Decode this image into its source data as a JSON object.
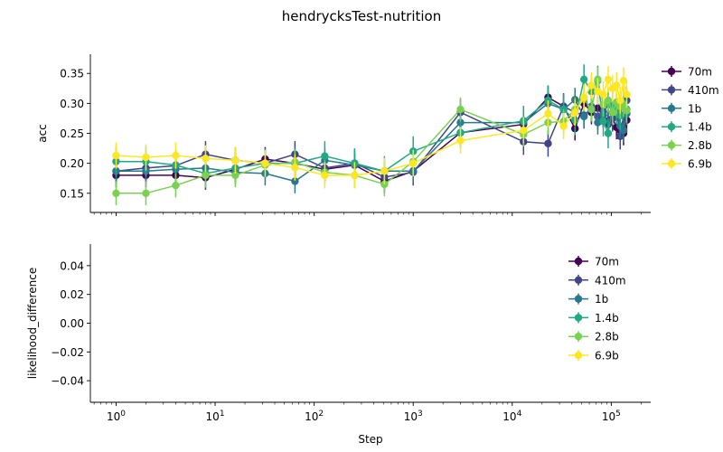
{
  "figure": {
    "title": "hendrycksTest-nutrition"
  },
  "chart_data": [
    {
      "type": "line",
      "title": "",
      "xlabel": "",
      "ylabel": "acc",
      "xscale": "log",
      "xlim": [
        0.55,
        250000
      ],
      "ylim": [
        0.118,
        0.382
      ],
      "x_tick_labels": [
        "10^0",
        "10^1",
        "10^2",
        "10^3",
        "10^4",
        "10^5"
      ],
      "y_ticks": [
        "0.15",
        "0.20",
        "0.25",
        "0.30",
        "0.35"
      ],
      "grid": false,
      "legend": "outside-right",
      "x": [
        1,
        2,
        4,
        8,
        16,
        32,
        64,
        128,
        256,
        512,
        1000,
        3000,
        13000,
        23000,
        33000,
        43000,
        53000,
        63000,
        73000,
        83000,
        93000,
        103000,
        113000,
        123000,
        133000,
        143000
      ],
      "series": [
        {
          "name": "70m",
          "color": "#440154",
          "err": 0.02,
          "values": [
            0.18,
            0.18,
            0.18,
            0.176,
            0.19,
            0.207,
            0.2,
            0.19,
            0.197,
            0.17,
            0.187,
            0.251,
            0.265,
            0.31,
            0.295,
            0.258,
            0.3,
            0.285,
            0.292,
            0.28,
            0.27,
            0.275,
            0.26,
            0.255,
            0.25,
            0.272
          ]
        },
        {
          "name": "410m",
          "color": "#414487",
          "err": 0.022,
          "values": [
            0.187,
            0.192,
            0.196,
            0.215,
            0.205,
            0.2,
            0.215,
            0.192,
            0.2,
            0.177,
            0.185,
            0.285,
            0.236,
            0.233,
            0.295,
            0.285,
            0.28,
            0.29,
            0.278,
            0.286,
            0.265,
            0.275,
            0.29,
            0.245,
            0.28,
            0.305
          ]
        },
        {
          "name": "1b",
          "color": "#2a788e",
          "err": 0.02,
          "values": [
            0.187,
            0.187,
            0.19,
            0.192,
            0.185,
            0.183,
            0.17,
            0.205,
            0.197,
            0.187,
            0.187,
            0.268,
            0.268,
            0.3,
            0.29,
            0.306,
            0.278,
            0.295,
            0.268,
            0.28,
            0.3,
            0.285,
            0.296,
            0.262,
            0.255,
            0.283
          ]
        },
        {
          "name": "1.4b",
          "color": "#22a884",
          "err": 0.025,
          "values": [
            0.203,
            0.203,
            0.197,
            0.183,
            0.192,
            0.2,
            0.2,
            0.212,
            0.2,
            0.187,
            0.22,
            0.251,
            0.271,
            0.305,
            0.29,
            0.272,
            0.34,
            0.32,
            0.338,
            0.27,
            0.25,
            0.295,
            0.29,
            0.28,
            0.3,
            0.29
          ]
        },
        {
          "name": "2.8b",
          "color": "#7ad151",
          "err": 0.02,
          "values": [
            0.15,
            0.15,
            0.163,
            0.18,
            0.18,
            0.197,
            0.202,
            0.185,
            0.18,
            0.165,
            0.203,
            0.29,
            0.248,
            0.268,
            0.27,
            0.29,
            0.307,
            0.29,
            0.34,
            0.298,
            0.305,
            0.285,
            0.302,
            0.295,
            0.298,
            0.288
          ]
        },
        {
          "name": "6.9b",
          "color": "#fde725",
          "err": 0.022,
          "values": [
            0.213,
            0.21,
            0.213,
            0.208,
            0.205,
            0.2,
            0.193,
            0.18,
            0.18,
            0.187,
            0.2,
            0.238,
            0.255,
            0.283,
            0.262,
            0.285,
            0.31,
            0.33,
            0.32,
            0.315,
            0.34,
            0.325,
            0.33,
            0.305,
            0.338,
            0.315
          ]
        }
      ]
    },
    {
      "type": "line",
      "title": "",
      "xlabel": "Step",
      "ylabel": "likelihood_difference",
      "xscale": "log",
      "xlim": [
        0.55,
        250000
      ],
      "ylim": [
        -0.055,
        0.055
      ],
      "x_tick_labels": [
        "10^0",
        "10^1",
        "10^2",
        "10^3",
        "10^4",
        "10^5"
      ],
      "y_ticks": [
        "0.04",
        "0.02",
        "0.00",
        "−0.02",
        "−0.04"
      ],
      "grid": false,
      "legend": "top-right",
      "series": [
        {
          "name": "70m",
          "color": "#440154",
          "values": []
        },
        {
          "name": "410m",
          "color": "#414487",
          "values": []
        },
        {
          "name": "1b",
          "color": "#2a788e",
          "values": []
        },
        {
          "name": "1.4b",
          "color": "#22a884",
          "values": []
        },
        {
          "name": "2.8b",
          "color": "#7ad151",
          "values": []
        },
        {
          "name": "6.9b",
          "color": "#fde725",
          "values": []
        }
      ]
    }
  ]
}
